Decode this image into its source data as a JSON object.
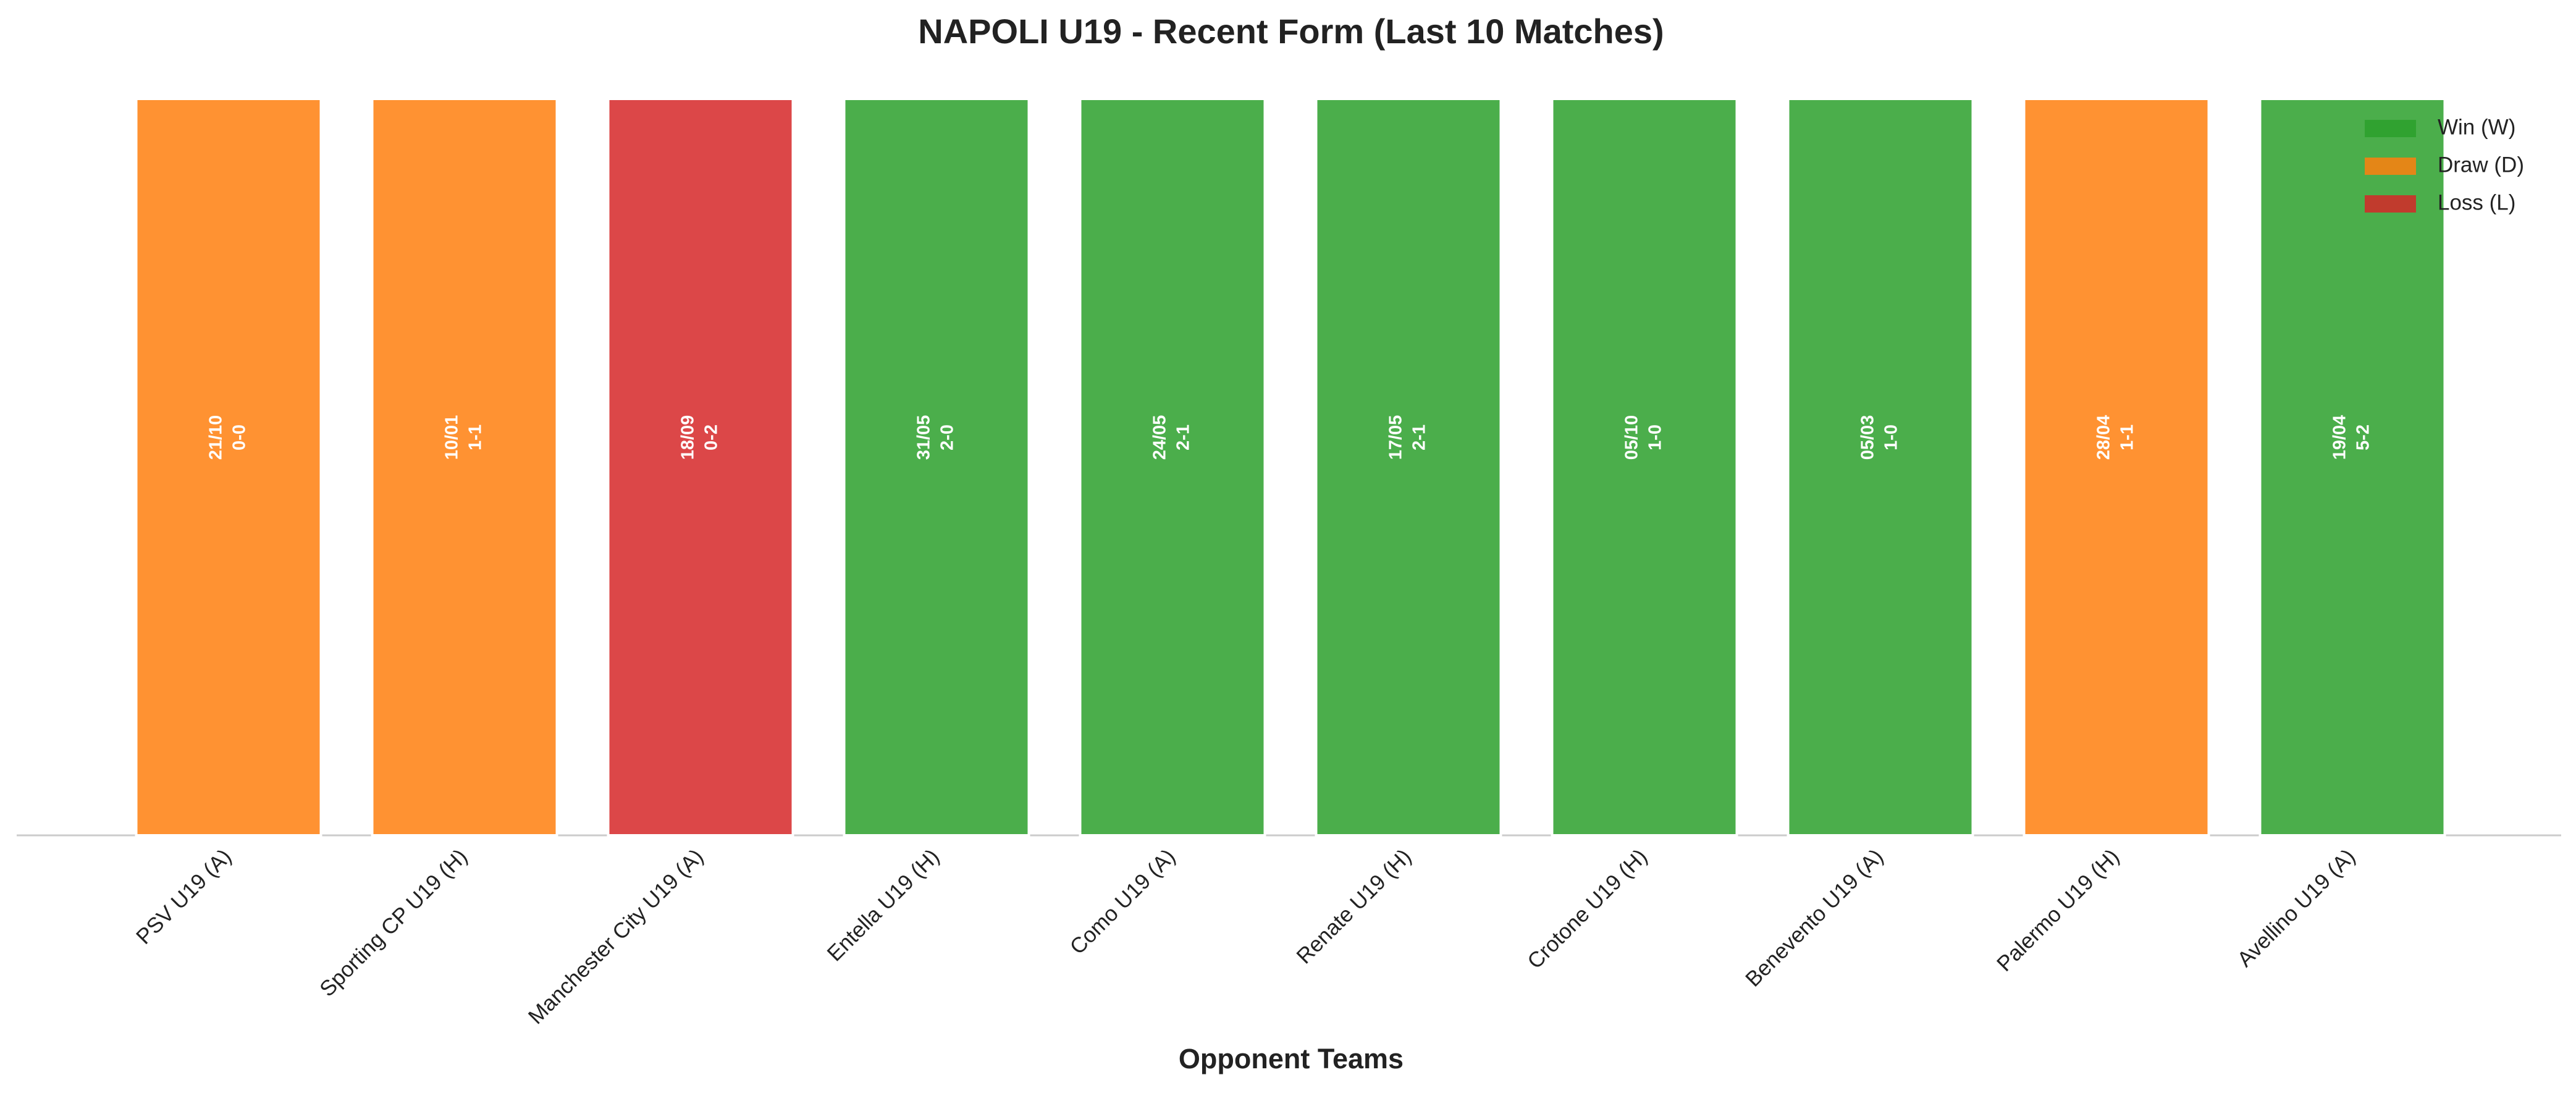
{
  "chart_data": {
    "type": "bar",
    "title": "NAPOLI U19 - Recent Form (Last 10 Matches)",
    "x_label": "Opponent Teams",
    "categories": [
      "PSV U19 (A)",
      "Sporting CP U19 (H)",
      "Manchester City U19 (A)",
      "Entella U19 (H)",
      "Como U19 (A)",
      "Renate U19 (H)",
      "Crotone U19 (H)",
      "Benevento U19 (A)",
      "Palermo U19 (H)",
      "Avellino U19 (A)"
    ],
    "dates": [
      "21/10",
      "10/01",
      "18/09",
      "31/05",
      "24/05",
      "17/05",
      "05/10",
      "05/03",
      "28/04",
      "19/04"
    ],
    "scores": [
      "0-0",
      "1-1",
      "0-2",
      "2-0",
      "2-1",
      "2-1",
      "1-0",
      "1-0",
      "1-1",
      "5-2"
    ],
    "series": [
      {
        "name": "Win (W)",
        "color": "#2ca02c",
        "values": [
          null,
          null,
          null,
          1,
          1,
          1,
          1,
          1,
          null,
          1
        ]
      },
      {
        "name": "Draw (D)",
        "color": "#ff7f0e",
        "values": [
          1,
          1,
          null,
          null,
          null,
          null,
          null,
          null,
          1,
          null
        ]
      },
      {
        "name": "Loss (L)",
        "color": "#d62728",
        "values": [
          null,
          null,
          1,
          null,
          null,
          null,
          null,
          null,
          null,
          null
        ]
      }
    ],
    "ylim": [
      0,
      1
    ],
    "legend": "upper right"
  }
}
